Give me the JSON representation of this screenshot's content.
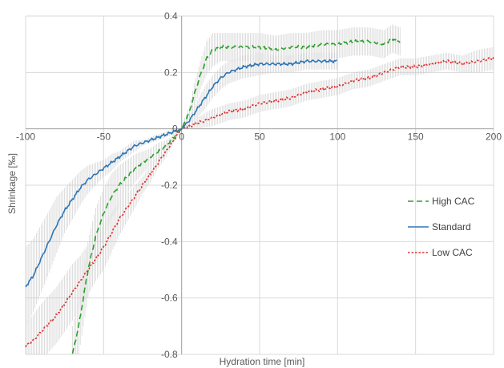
{
  "chart_data": {
    "type": "line",
    "title": "",
    "xlabel": "Hydration time [min]",
    "ylabel": "Shrinkage [‰]",
    "xlim": [
      -100,
      200
    ],
    "ylim": [
      -0.8,
      0.4
    ],
    "x_ticks": [
      "-100",
      "-50",
      "0",
      "50",
      "100",
      "150",
      "200"
    ],
    "y_ticks": [
      "-0.8",
      "-0.6",
      "-0.4",
      "-0.2",
      "0",
      "0.2",
      "0.4"
    ],
    "grid": true,
    "error_bars": true,
    "legend_position": "right",
    "series": [
      {
        "name": "High CAC",
        "color": "#2ca02c",
        "dash": "dashed",
        "x": [
          -70,
          -66,
          -63,
          -60,
          -55,
          -50,
          -45,
          -40,
          -35,
          -30,
          -25,
          -20,
          -15,
          -10,
          -5,
          0,
          5,
          8,
          12,
          16,
          20,
          25,
          30,
          40,
          50,
          60,
          70,
          80,
          90,
          100,
          110,
          120,
          130,
          135,
          140
        ],
        "y": [
          -0.8,
          -0.7,
          -0.6,
          -0.5,
          -0.38,
          -0.3,
          -0.24,
          -0.2,
          -0.17,
          -0.14,
          -0.12,
          -0.1,
          -0.08,
          -0.06,
          -0.03,
          0.0,
          0.06,
          0.12,
          0.19,
          0.25,
          0.28,
          0.29,
          0.29,
          0.29,
          0.29,
          0.28,
          0.29,
          0.29,
          0.3,
          0.3,
          0.31,
          0.31,
          0.3,
          0.32,
          0.31
        ],
        "err": [
          0.1,
          0.1,
          0.1,
          0.1,
          0.1,
          0.09,
          0.08,
          0.07,
          0.06,
          0.05,
          0.04,
          0.03,
          0.03,
          0.02,
          0.01,
          0.01,
          0.02,
          0.04,
          0.05,
          0.06,
          0.06,
          0.05,
          0.05,
          0.05,
          0.05,
          0.05,
          0.05,
          0.05,
          0.05,
          0.05,
          0.05,
          0.05,
          0.05,
          0.05,
          0.05
        ]
      },
      {
        "name": "Standard",
        "color": "#2e75b6",
        "dash": "solid",
        "x": [
          -100,
          -95,
          -90,
          -85,
          -80,
          -75,
          -70,
          -65,
          -60,
          -55,
          -50,
          -45,
          -40,
          -35,
          -30,
          -25,
          -20,
          -15,
          -10,
          -5,
          0,
          5,
          10,
          15,
          20,
          25,
          30,
          40,
          50,
          60,
          70,
          80,
          90,
          100
        ],
        "y": [
          -0.56,
          -0.52,
          -0.46,
          -0.4,
          -0.34,
          -0.29,
          -0.25,
          -0.21,
          -0.18,
          -0.16,
          -0.14,
          -0.12,
          -0.1,
          -0.08,
          -0.06,
          -0.05,
          -0.04,
          -0.03,
          -0.02,
          -0.01,
          0.0,
          0.03,
          0.07,
          0.11,
          0.15,
          0.18,
          0.2,
          0.22,
          0.23,
          0.23,
          0.23,
          0.24,
          0.24,
          0.24
        ],
        "err": [
          0.14,
          0.13,
          0.12,
          0.11,
          0.1,
          0.08,
          0.07,
          0.06,
          0.05,
          0.04,
          0.03,
          0.03,
          0.02,
          0.02,
          0.02,
          0.01,
          0.01,
          0.01,
          0.01,
          0.01,
          0.0,
          0.02,
          0.03,
          0.04,
          0.04,
          0.04,
          0.04,
          0.04,
          0.04,
          0.03,
          0.03,
          0.03,
          0.03,
          0.03
        ]
      },
      {
        "name": "Low CAC",
        "color": "#e03030",
        "dash": "dotted",
        "x": [
          -100,
          -95,
          -90,
          -85,
          -80,
          -75,
          -70,
          -65,
          -60,
          -55,
          -50,
          -45,
          -40,
          -35,
          -30,
          -25,
          -20,
          -15,
          -10,
          -5,
          0,
          10,
          20,
          30,
          40,
          50,
          60,
          70,
          80,
          90,
          100,
          110,
          120,
          130,
          140,
          150,
          160,
          170,
          180,
          190,
          200
        ],
        "y": [
          -0.77,
          -0.75,
          -0.72,
          -0.69,
          -0.66,
          -0.62,
          -0.58,
          -0.54,
          -0.5,
          -0.46,
          -0.42,
          -0.37,
          -0.32,
          -0.28,
          -0.24,
          -0.2,
          -0.16,
          -0.12,
          -0.08,
          -0.04,
          0.0,
          0.02,
          0.04,
          0.06,
          0.07,
          0.09,
          0.1,
          0.11,
          0.13,
          0.14,
          0.15,
          0.17,
          0.18,
          0.2,
          0.22,
          0.22,
          0.23,
          0.24,
          0.23,
          0.24,
          0.25
        ],
        "err": [
          0.08,
          0.09,
          0.1,
          0.1,
          0.1,
          0.1,
          0.1,
          0.09,
          0.09,
          0.08,
          0.08,
          0.07,
          0.06,
          0.05,
          0.04,
          0.03,
          0.03,
          0.02,
          0.02,
          0.01,
          0.0,
          0.02,
          0.03,
          0.03,
          0.03,
          0.03,
          0.03,
          0.03,
          0.03,
          0.03,
          0.03,
          0.03,
          0.03,
          0.03,
          0.03,
          0.03,
          0.03,
          0.03,
          0.03,
          0.04,
          0.04
        ]
      }
    ]
  }
}
